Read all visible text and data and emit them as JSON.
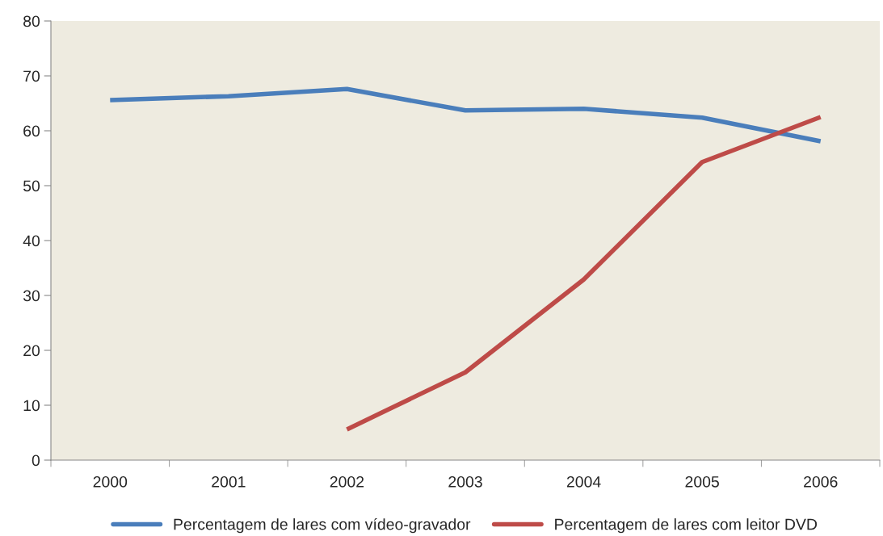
{
  "chart_data": {
    "type": "line",
    "categories": [
      "2000",
      "2001",
      "2002",
      "2003",
      "2004",
      "2005",
      "2006"
    ],
    "series": [
      {
        "name": "Percentagem de lares com vídeo-gravador",
        "color": "#4a7ebb",
        "values": [
          65.6,
          66.3,
          67.6,
          63.7,
          64.0,
          62.4,
          58.1
        ]
      },
      {
        "name": "Percentagem de lares com leitor DVD",
        "color": "#be4b48",
        "values": [
          null,
          null,
          5.6,
          16.0,
          32.9,
          54.3,
          62.5
        ]
      }
    ],
    "ylim": [
      0,
      80
    ],
    "yticks": [
      0,
      10,
      20,
      30,
      40,
      50,
      60,
      70,
      80
    ],
    "grid": false,
    "legend": "bottom",
    "marker": "none",
    "line_style": "solid"
  }
}
